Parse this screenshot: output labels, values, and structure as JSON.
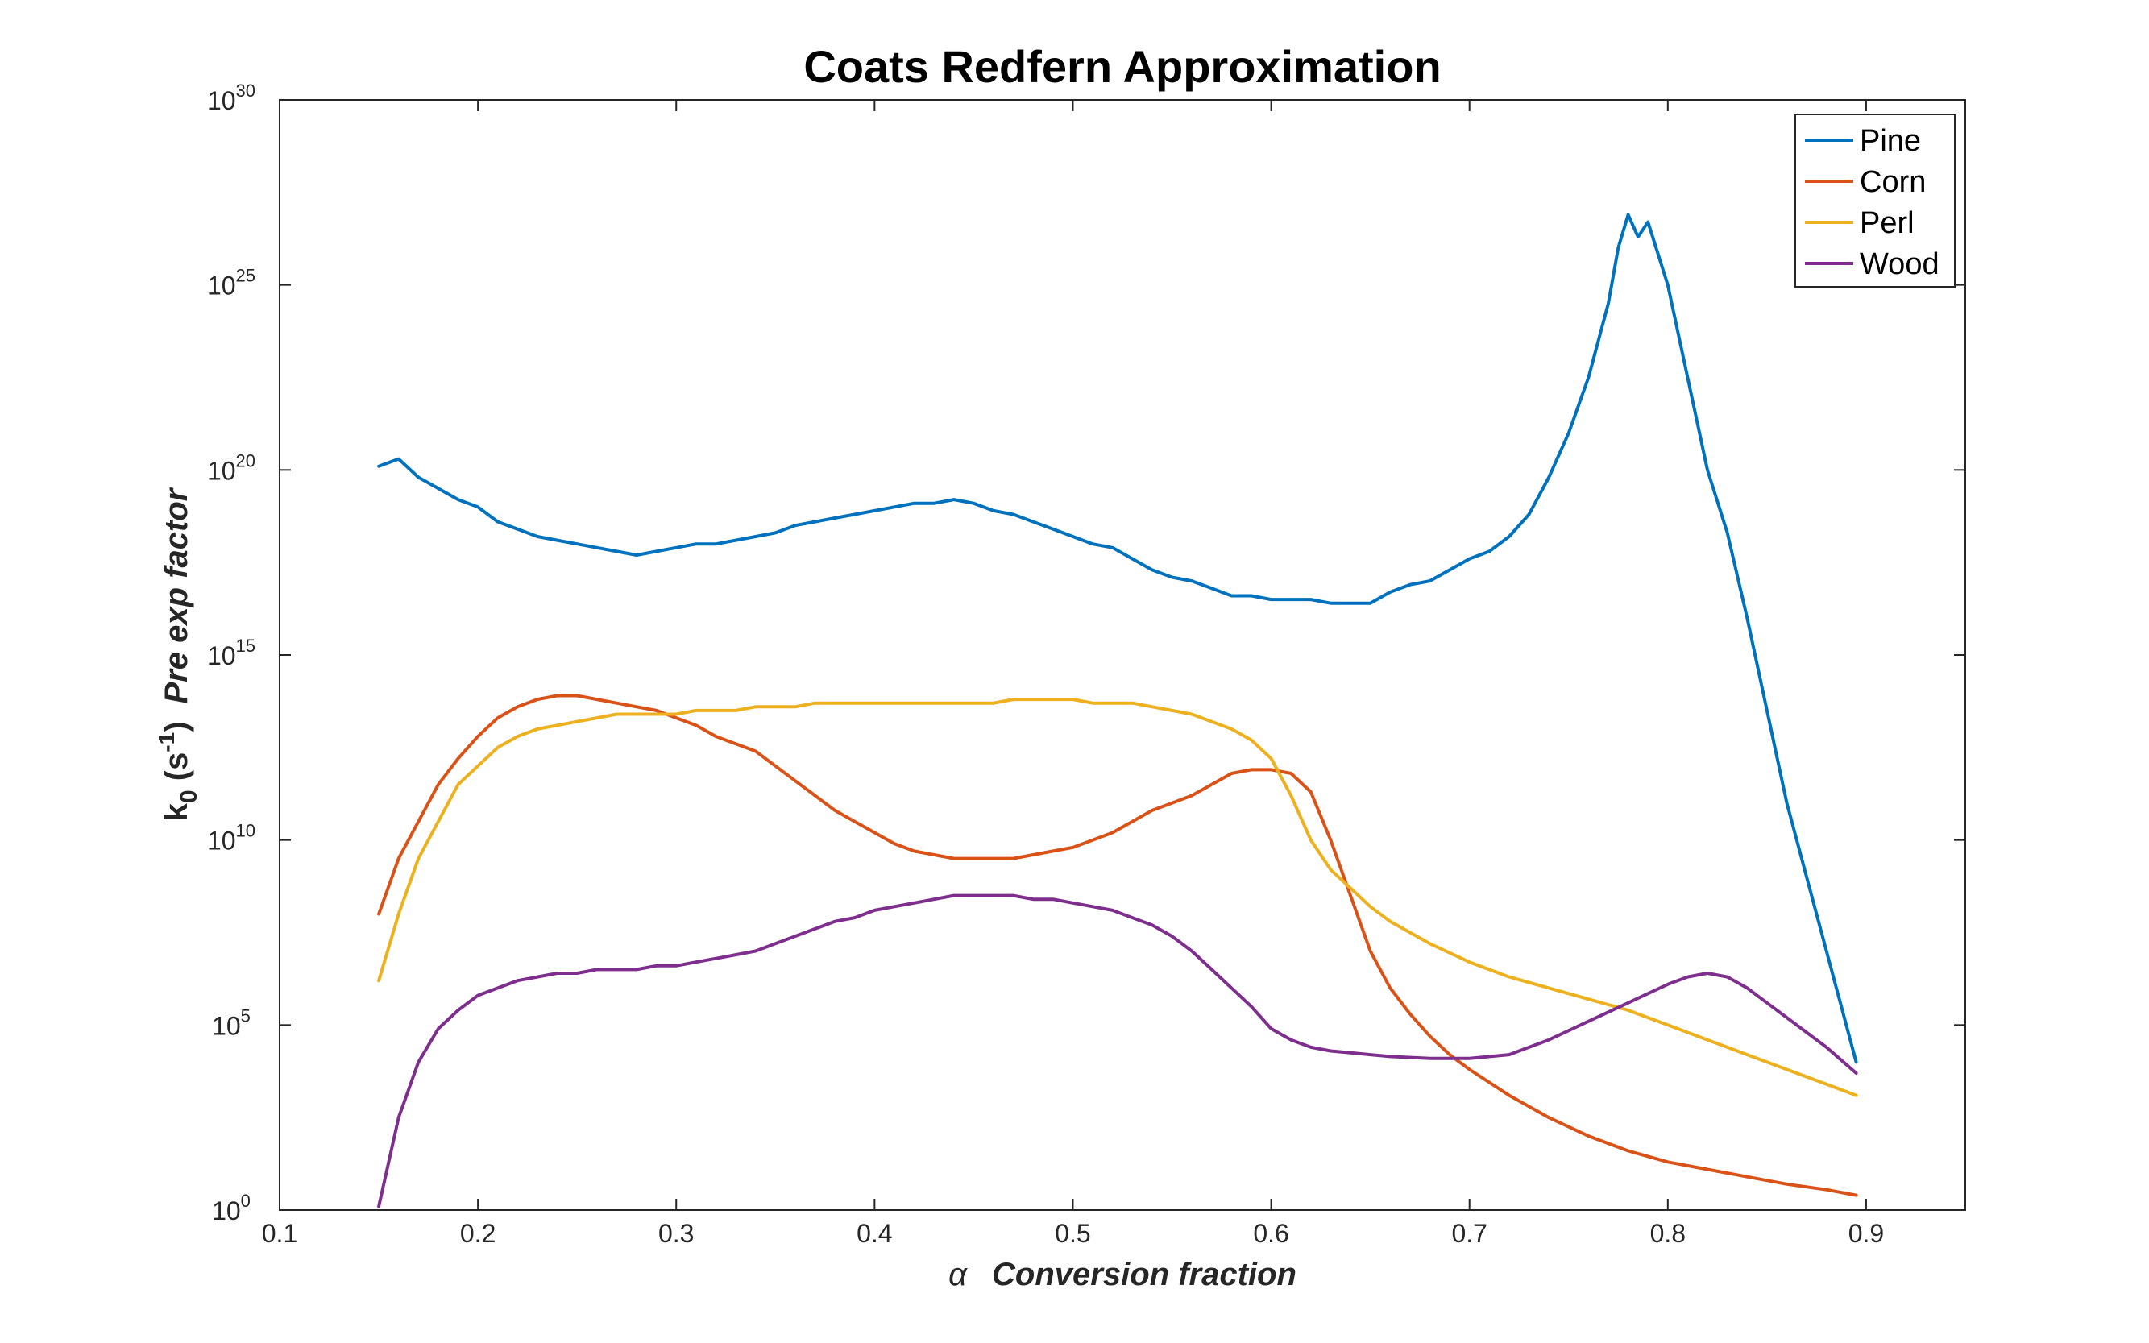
{
  "chart_data": {
    "type": "line",
    "title": "Coats Redfern Approximation",
    "xlabel": {
      "symbol": "α",
      "text": "Conversion fraction"
    },
    "ylabel": {
      "base": "k",
      "sub": "0",
      "unit_open": " (s",
      "unit_sup": "-1",
      "unit_close": ")",
      "text": "Pre exp factor"
    },
    "xlim": [
      0.1,
      0.95
    ],
    "ylim_log10": [
      0,
      30
    ],
    "y_scale": "log",
    "x_ticks": [
      "0.1",
      "0.2",
      "0.3",
      "0.4",
      "0.5",
      "0.6",
      "0.7",
      "0.8",
      "0.9"
    ],
    "y_ticks": [
      {
        "base": "10",
        "exp": "0"
      },
      {
        "base": "10",
        "exp": "5"
      },
      {
        "base": "10",
        "exp": "10"
      },
      {
        "base": "10",
        "exp": "15"
      },
      {
        "base": "10",
        "exp": "20"
      },
      {
        "base": "10",
        "exp": "25"
      },
      {
        "base": "10",
        "exp": "30"
      }
    ],
    "grid": false,
    "legend_position": "top-right",
    "series": [
      {
        "name": "Pine",
        "color": "#0072BD",
        "x": [
          0.15,
          0.16,
          0.17,
          0.18,
          0.19,
          0.2,
          0.21,
          0.22,
          0.23,
          0.24,
          0.25,
          0.26,
          0.27,
          0.28,
          0.29,
          0.3,
          0.31,
          0.32,
          0.33,
          0.34,
          0.35,
          0.36,
          0.37,
          0.38,
          0.39,
          0.4,
          0.41,
          0.42,
          0.43,
          0.44,
          0.45,
          0.46,
          0.47,
          0.48,
          0.49,
          0.5,
          0.51,
          0.52,
          0.53,
          0.54,
          0.55,
          0.56,
          0.57,
          0.58,
          0.59,
          0.6,
          0.61,
          0.62,
          0.63,
          0.64,
          0.65,
          0.66,
          0.67,
          0.68,
          0.69,
          0.7,
          0.71,
          0.72,
          0.73,
          0.74,
          0.75,
          0.76,
          0.77,
          0.775,
          0.78,
          0.785,
          0.79,
          0.8,
          0.81,
          0.82,
          0.83,
          0.84,
          0.85,
          0.86,
          0.87,
          0.88,
          0.89,
          0.895
        ],
        "y_log10": [
          20.1,
          20.3,
          19.8,
          19.5,
          19.2,
          19.0,
          18.6,
          18.4,
          18.2,
          18.1,
          18.0,
          17.9,
          17.8,
          17.7,
          17.8,
          17.9,
          18.0,
          18.0,
          18.1,
          18.2,
          18.3,
          18.5,
          18.6,
          18.7,
          18.8,
          18.9,
          19.0,
          19.1,
          19.1,
          19.2,
          19.1,
          18.9,
          18.8,
          18.6,
          18.4,
          18.2,
          18.0,
          17.9,
          17.6,
          17.3,
          17.1,
          17.0,
          16.8,
          16.6,
          16.6,
          16.5,
          16.5,
          16.5,
          16.4,
          16.4,
          16.4,
          16.7,
          16.9,
          17.0,
          17.3,
          17.6,
          17.8,
          18.2,
          18.8,
          19.8,
          21.0,
          22.5,
          24.5,
          26.0,
          26.9,
          26.3,
          26.7,
          25.0,
          22.5,
          20.0,
          18.3,
          16.0,
          13.5,
          11.0,
          9.0,
          7.0,
          5.0,
          4.0
        ]
      },
      {
        "name": "Corn",
        "color": "#D95319",
        "x": [
          0.15,
          0.16,
          0.17,
          0.18,
          0.19,
          0.2,
          0.21,
          0.22,
          0.23,
          0.24,
          0.25,
          0.26,
          0.27,
          0.28,
          0.29,
          0.3,
          0.31,
          0.32,
          0.33,
          0.34,
          0.35,
          0.36,
          0.37,
          0.38,
          0.39,
          0.4,
          0.41,
          0.42,
          0.43,
          0.44,
          0.45,
          0.46,
          0.47,
          0.48,
          0.49,
          0.5,
          0.51,
          0.52,
          0.53,
          0.54,
          0.55,
          0.56,
          0.57,
          0.58,
          0.59,
          0.6,
          0.61,
          0.62,
          0.63,
          0.64,
          0.65,
          0.66,
          0.67,
          0.68,
          0.69,
          0.7,
          0.72,
          0.74,
          0.76,
          0.78,
          0.8,
          0.82,
          0.84,
          0.86,
          0.88,
          0.895
        ],
        "y_log10": [
          8.0,
          9.5,
          10.5,
          11.5,
          12.2,
          12.8,
          13.3,
          13.6,
          13.8,
          13.9,
          13.9,
          13.8,
          13.7,
          13.6,
          13.5,
          13.3,
          13.1,
          12.8,
          12.6,
          12.4,
          12.0,
          11.6,
          11.2,
          10.8,
          10.5,
          10.2,
          9.9,
          9.7,
          9.6,
          9.5,
          9.5,
          9.5,
          9.5,
          9.6,
          9.7,
          9.8,
          10.0,
          10.2,
          10.5,
          10.8,
          11.0,
          11.2,
          11.5,
          11.8,
          11.9,
          11.9,
          11.8,
          11.3,
          10.0,
          8.5,
          7.0,
          6.0,
          5.3,
          4.7,
          4.2,
          3.8,
          3.1,
          2.5,
          2.0,
          1.6,
          1.3,
          1.1,
          0.9,
          0.7,
          0.55,
          0.4
        ]
      },
      {
        "name": "Perl",
        "color": "#EDB120",
        "x": [
          0.15,
          0.16,
          0.17,
          0.18,
          0.19,
          0.2,
          0.21,
          0.22,
          0.23,
          0.24,
          0.25,
          0.26,
          0.27,
          0.28,
          0.29,
          0.3,
          0.31,
          0.32,
          0.33,
          0.34,
          0.35,
          0.36,
          0.37,
          0.38,
          0.39,
          0.4,
          0.41,
          0.42,
          0.43,
          0.44,
          0.45,
          0.46,
          0.47,
          0.48,
          0.49,
          0.5,
          0.51,
          0.52,
          0.53,
          0.54,
          0.55,
          0.56,
          0.57,
          0.58,
          0.59,
          0.6,
          0.61,
          0.62,
          0.63,
          0.64,
          0.65,
          0.66,
          0.68,
          0.7,
          0.72,
          0.74,
          0.76,
          0.78,
          0.8,
          0.82,
          0.84,
          0.86,
          0.88,
          0.895
        ],
        "y_log10": [
          6.2,
          8.0,
          9.5,
          10.5,
          11.5,
          12.0,
          12.5,
          12.8,
          13.0,
          13.1,
          13.2,
          13.3,
          13.4,
          13.4,
          13.4,
          13.4,
          13.5,
          13.5,
          13.5,
          13.6,
          13.6,
          13.6,
          13.7,
          13.7,
          13.7,
          13.7,
          13.7,
          13.7,
          13.7,
          13.7,
          13.7,
          13.7,
          13.8,
          13.8,
          13.8,
          13.8,
          13.7,
          13.7,
          13.7,
          13.6,
          13.5,
          13.4,
          13.2,
          13.0,
          12.7,
          12.2,
          11.2,
          10.0,
          9.2,
          8.7,
          8.2,
          7.8,
          7.2,
          6.7,
          6.3,
          6.0,
          5.7,
          5.4,
          5.0,
          4.6,
          4.2,
          3.8,
          3.4,
          3.1
        ]
      },
      {
        "name": "Wood",
        "color": "#7E2F8E",
        "x": [
          0.15,
          0.16,
          0.17,
          0.18,
          0.19,
          0.2,
          0.21,
          0.22,
          0.23,
          0.24,
          0.25,
          0.26,
          0.27,
          0.28,
          0.29,
          0.3,
          0.31,
          0.32,
          0.33,
          0.34,
          0.35,
          0.36,
          0.37,
          0.38,
          0.39,
          0.4,
          0.41,
          0.42,
          0.43,
          0.44,
          0.45,
          0.46,
          0.47,
          0.48,
          0.49,
          0.5,
          0.51,
          0.52,
          0.53,
          0.54,
          0.55,
          0.56,
          0.57,
          0.58,
          0.59,
          0.6,
          0.61,
          0.62,
          0.63,
          0.64,
          0.65,
          0.66,
          0.68,
          0.7,
          0.72,
          0.74,
          0.76,
          0.78,
          0.8,
          0.81,
          0.82,
          0.83,
          0.84,
          0.85,
          0.86,
          0.88,
          0.895
        ],
        "y_log10": [
          0.1,
          2.5,
          4.0,
          4.9,
          5.4,
          5.8,
          6.0,
          6.2,
          6.3,
          6.4,
          6.4,
          6.5,
          6.5,
          6.5,
          6.6,
          6.6,
          6.7,
          6.8,
          6.9,
          7.0,
          7.2,
          7.4,
          7.6,
          7.8,
          7.9,
          8.1,
          8.2,
          8.3,
          8.4,
          8.5,
          8.5,
          8.5,
          8.5,
          8.4,
          8.4,
          8.3,
          8.2,
          8.1,
          7.9,
          7.7,
          7.4,
          7.0,
          6.5,
          6.0,
          5.5,
          4.9,
          4.6,
          4.4,
          4.3,
          4.25,
          4.2,
          4.15,
          4.1,
          4.1,
          4.2,
          4.6,
          5.1,
          5.6,
          6.1,
          6.3,
          6.4,
          6.3,
          6.0,
          5.6,
          5.2,
          4.4,
          3.7
        ]
      }
    ]
  }
}
